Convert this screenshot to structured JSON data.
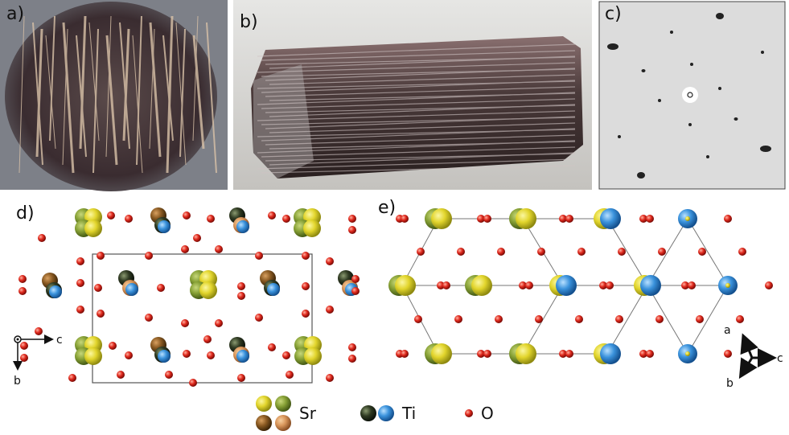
{
  "panels": [
    {
      "label": "a)"
    },
    {
      "label": "b)"
    },
    {
      "label": "c)"
    },
    {
      "label": "d)",
      "axes": [
        "c",
        "b"
      ]
    },
    {
      "label": "e)",
      "axes": [
        "a",
        "c",
        "b"
      ]
    }
  ],
  "legend": [
    {
      "label": "Sr"
    },
    {
      "label": "Ti"
    },
    {
      "label": "O"
    }
  ]
}
